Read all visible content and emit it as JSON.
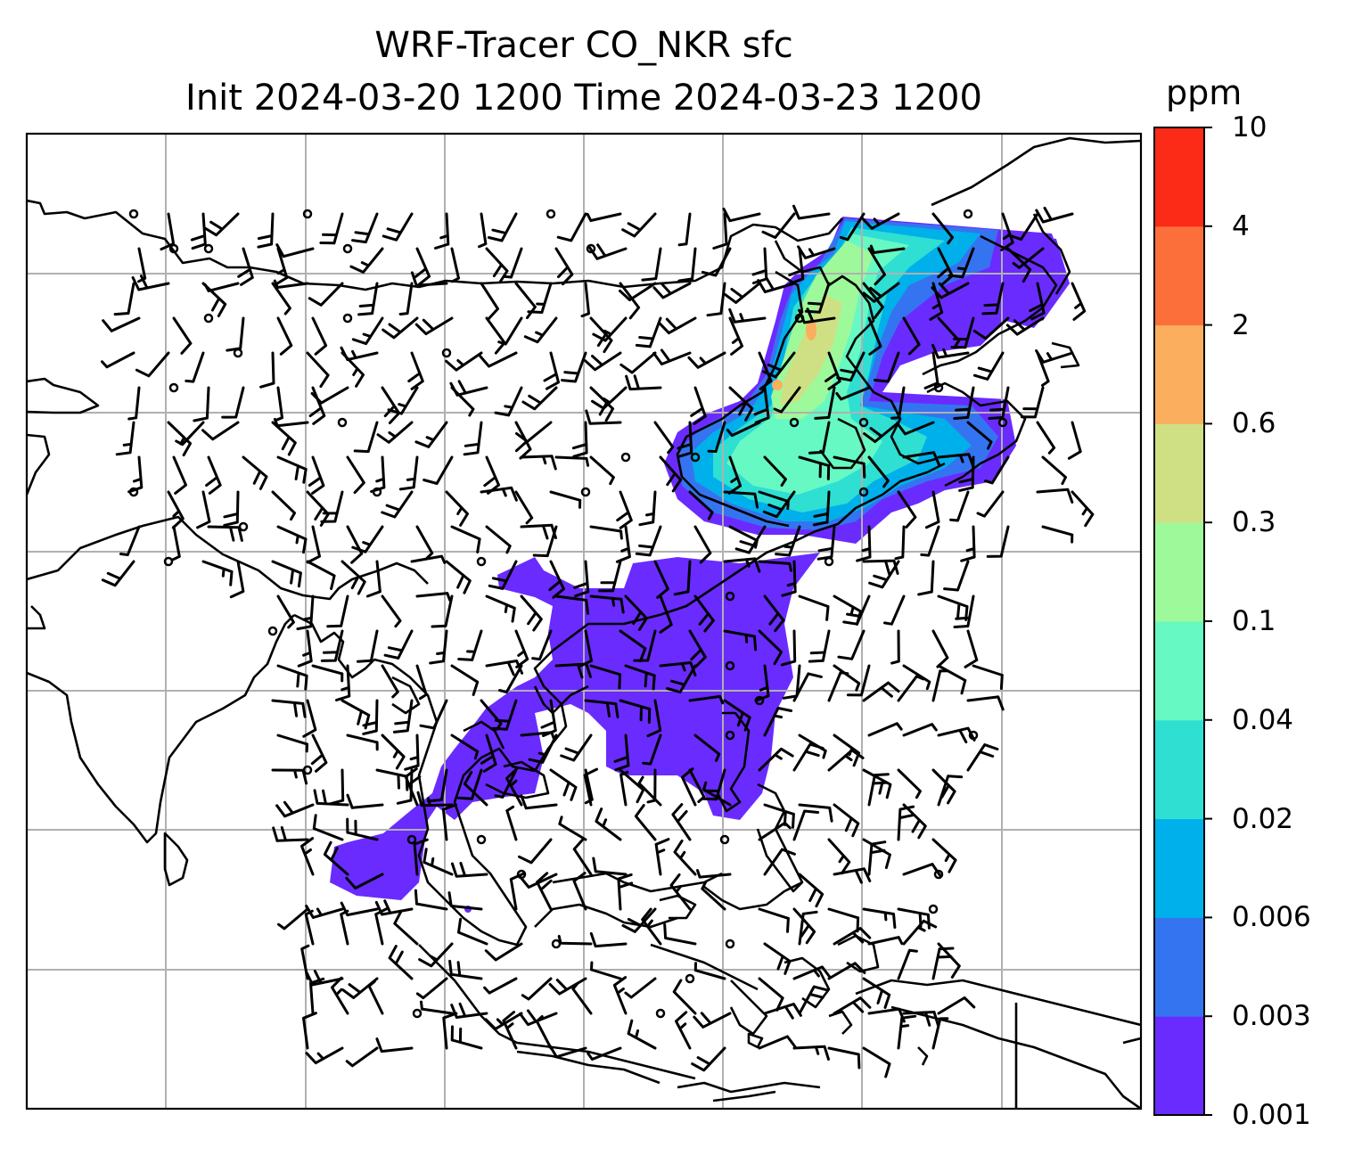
{
  "title": {
    "line1": "WRF-Tracer CO_NKR sfc",
    "line2": "Init 2024-03-20 1200 Time 2024-03-23 1200"
  },
  "colorbar": {
    "units": "ppm",
    "ticks": [
      "0.001",
      "0.003",
      "0.006",
      "0.02",
      "0.04",
      "0.1",
      "0.3",
      "0.6",
      "2",
      "4",
      "10"
    ],
    "colors": [
      "#6a2bff",
      "#3574f0",
      "#00b0ea",
      "#2fdfd2",
      "#66f9c3",
      "#9ef99a",
      "#cfe084",
      "#fbae5e",
      "#fc6f3b",
      "#fb2b18"
    ]
  },
  "map": {
    "tracer": "CO_NKR",
    "level": "sfc",
    "overlay": "wind barbs",
    "grid": true,
    "colors": {
      "coast": "#000000",
      "gridline": "#b0b0b0"
    }
  }
}
